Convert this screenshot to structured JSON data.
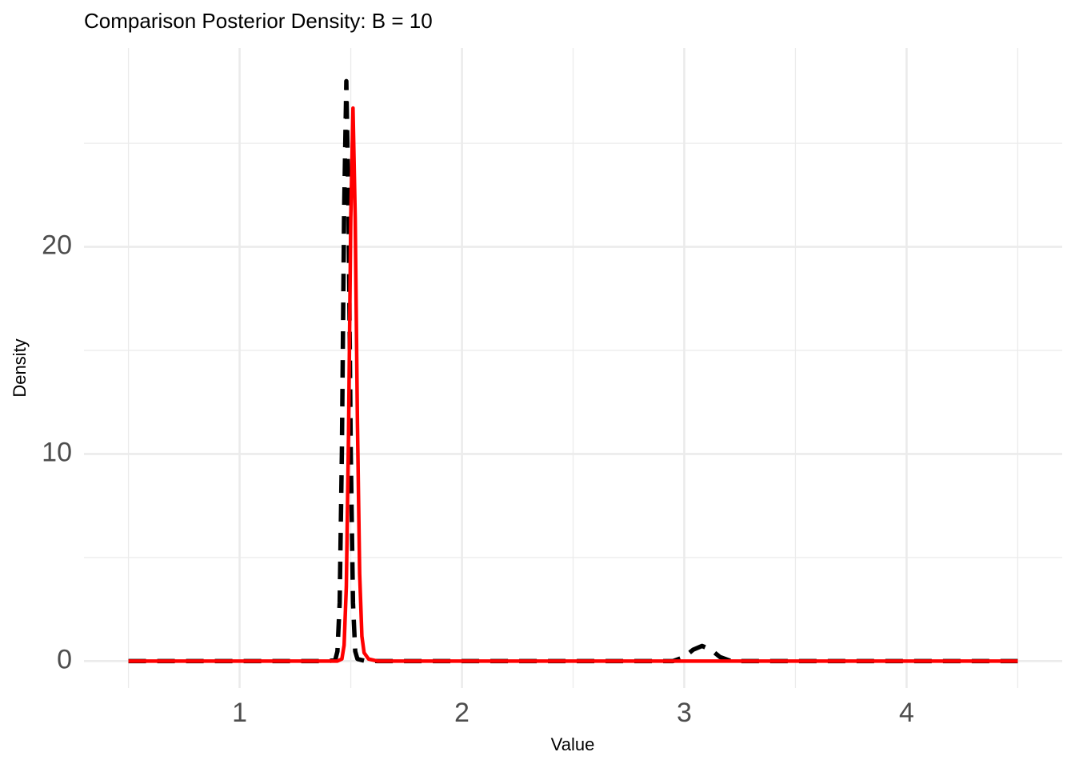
{
  "chart_data": {
    "type": "line",
    "title": "Comparison Posterior Density: B = 10",
    "x_label": "Value",
    "y_label": "Density",
    "xlim": [
      0.3,
      4.7
    ],
    "ylim": [
      -1.3,
      29.6
    ],
    "xticks": [
      1,
      2,
      3,
      4
    ],
    "yticks": [
      0,
      10,
      20
    ],
    "x_minor_grid": [
      0.5,
      1.5,
      2.5,
      3.5,
      4.5
    ],
    "y_minor_grid": [
      5,
      15,
      25
    ],
    "grid": true,
    "series": [
      {
        "color": "#000000",
        "linetype": "dashed",
        "x": [
          0.5,
          1.4,
          1.43,
          1.44,
          1.45,
          1.46,
          1.47,
          1.48,
          1.49,
          1.5,
          1.51,
          1.52,
          1.53,
          1.56,
          1.62,
          2.95,
          3.0,
          3.04,
          3.08,
          3.12,
          3.16,
          3.21,
          4.5
        ],
        "values": [
          0,
          0,
          0.05,
          0.47,
          2.8,
          10.1,
          21.7,
          28,
          21.7,
          10.1,
          2.8,
          0.47,
          0.1,
          0.02,
          0,
          0,
          0.2,
          0.55,
          0.73,
          0.55,
          0.2,
          0,
          0
        ]
      },
      {
        "color": "#ff0000",
        "linetype": "solid",
        "x": [
          0.5,
          1.44,
          1.46,
          1.47,
          1.48,
          1.49,
          1.5,
          1.51,
          1.52,
          1.53,
          1.54,
          1.55,
          1.56,
          1.58,
          1.62,
          4.5
        ],
        "values": [
          0,
          0,
          0.1,
          0.76,
          3.6,
          11.0,
          21.4,
          26.7,
          21.4,
          11.5,
          4.2,
          1.2,
          0.4,
          0.1,
          0,
          0
        ]
      }
    ]
  }
}
